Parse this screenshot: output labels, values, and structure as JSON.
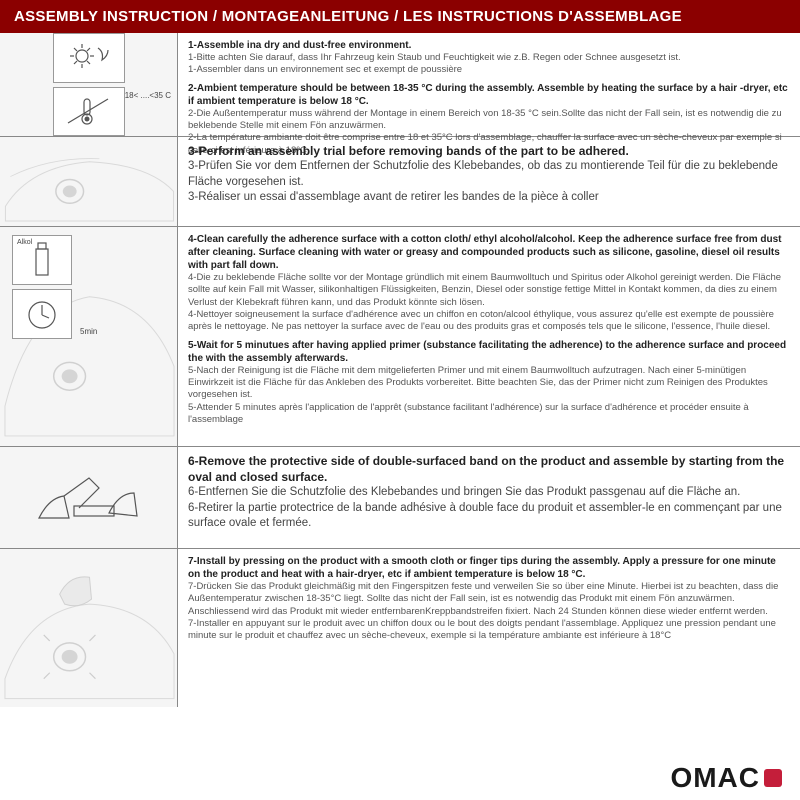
{
  "colors": {
    "header_bg": "#8b0000",
    "header_fg": "#ffffff",
    "border": "#888888",
    "text_muted": "#555555",
    "text_bold": "#222222",
    "logo_red": "#c41e3a",
    "logo_text": "#1a1a1a",
    "img_bg": "#f5f5f5"
  },
  "header": "ASSEMBLY INSTRUCTION / MONTAGEANLEITUNG / LES INSTRUCTIONS D'ASSEMBLAGE",
  "logo": "OMAC",
  "rows": [
    {
      "img_labels": {
        "temp": "18< ....<35 C"
      },
      "blocks": [
        {
          "bold": "1-Assemble ina dry and dust-free environment.",
          "lines": [
            "1-Bitte achten Sie darauf, dass Ihr Fahrzeug kein Staub und Feuchtigkeit wie z.B. Regen oder Schnee ausgesetzt ist.",
            "1-Assembler dans un environnement sec et exempt de poussière"
          ]
        },
        {
          "bold": "2-Ambient temperature should be between 18-35 °C  during the assembly. Assemble by heating the surface by a hair -dryer, etc if ambient temperature is below 18 °C.",
          "lines": [
            "2-Die Außentemperatur muss während der Montage in einem Bereich von 18-35 °C  sein.Sollte das nicht der Fall sein, ist es notwendig die zu beklebende Stelle mit einem Fön anzuwärmen.",
            "2-La température ambiante doit être comprise entre 18 et 35°C lors d'assemblage, chauffer la surface avec un sèche-cheveux par exemple si celle-ci est inférieure à 18°C."
          ]
        }
      ]
    },
    {
      "blocks": [
        {
          "big_bold": "3-Perform an assembly trial before removing bands of the part to be adhered.",
          "big_lines": [
            "3-Prüfen Sie vor dem Entfernen der Schutzfolie des Klebebandes, ob das zu montierende Teil für die zu beklebende Fläche vorgesehen ist.",
            "3-Réaliser un essai d'assemblage avant de retirer les bandes de la pièce à coller"
          ]
        }
      ]
    },
    {
      "img_labels": {
        "alkol": "Alkol",
        "time": "5min"
      },
      "blocks": [
        {
          "bold": "4-Clean carefully the adherence surface with a cotton cloth/ ethyl alcohol/alcohol. Keep the adherence surface free from dust after cleaning. Surface cleaning with water or greasy and compounded products such as silicone, gasoline, diesel oil results with part fall down.",
          "lines": [
            "4-Die zu beklebende Fläche sollte vor der Montage gründlich mit einem Baumwolltuch und Spiritus oder Alkohol gereinigt werden. Die Fläche sollte auf kein Fall mit Wasser, silikonhaltigen Flüssigkeiten, Benzin, Diesel oder sonstige fettige Mittel in Kontakt kommen, da dies zu einem Verlust der Klebekraft führen kann, und das Produkt könnte sich lösen.",
            "4-Nettoyer soigneusement la surface d'adhérence avec un chiffon en coton/alcool éthylique, vous assurez qu'elle est exempte de poussière après le nettoyage. Ne pas nettoyer la surface avec de l'eau ou des produits gras et composés tels que le silicone, l'essence, l'huile diesel."
          ]
        },
        {
          "bold": "5-Wait for 5 minutues after having applied primer (substance facilitating the adherence) to the adherence surface and proceed the with the assembly afterwards.",
          "lines": [
            "5-Nach der Reinigung ist die Fläche mit dem mitgelieferten Primer und mit einem Baumwolltuch aufzutragen. Nach einer 5-minütigen Einwirkzeit ist die Fläche für das Ankleben des Produkts vorbereitet. Bitte beachten Sie, das der Primer nicht zum Reinigen des Produktes vorgesehen ist.",
            "5-Attender 5 minutes après l'application de l'apprêt (substance facilitant l'adhérence) sur la surface d'adhérence et procéder ensuite à l'assemblage"
          ]
        }
      ]
    },
    {
      "blocks": [
        {
          "big_bold": "6-Remove the protective side of double-surfaced band on the product and assemble by starting from the oval and closed surface.",
          "big_lines": [
            "6-Entfernen Sie die Schutzfolie des Klebebandes und bringen Sie das Produkt passgenau auf die Fläche an.",
            "6-Retirer la partie protectrice de la bande adhésive à double face du produit et assembler-le en commençant par une surface ovale et fermée."
          ]
        }
      ]
    },
    {
      "blocks": [
        {
          "bold": "7-Install by pressing on the product with a smooth cloth or finger tips during the assembly. Apply a pressure for one minute on the product and heat with a hair-dryer, etc if ambient temperature is below 18 °C.",
          "lines": [
            "7-Drücken Sie das Produkt gleichmäßig mit den Fingerspitzen feste und verweilen Sie so über eine Minute. Hierbei ist zu beachten, dass die Außentemperatur zwischen 18-35°C liegt. Sollte das nicht der Fall sein, ist es notwendig das Produkt mit einem Fön anzuwärmen. Anschliessend wird das Produkt mit wieder entfernbarenKreppbandstreifen fixiert. Nach 24 Stunden können diese wieder entfernt werden.",
            "7-Installer en appuyant sur le produit avec un chiffon doux ou le bout des doigts pendant l'assemblage. Appliquez une pression pendant une minute sur le produit et chauffez avec un sèche-cheveux, exemple si la température ambiante est inférieure à 18°C"
          ]
        }
      ]
    }
  ]
}
